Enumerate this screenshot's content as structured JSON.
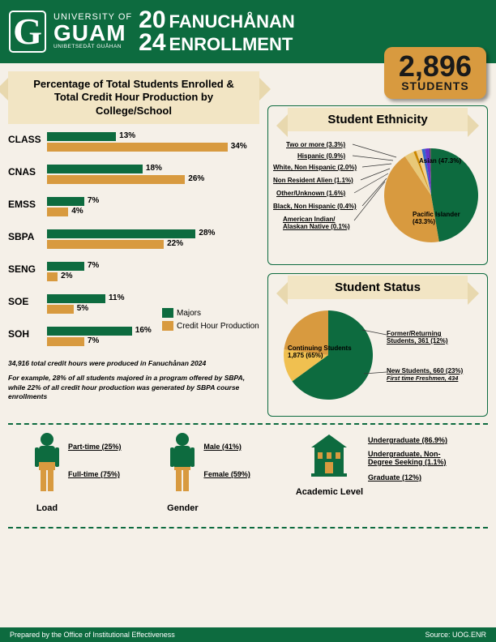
{
  "header": {
    "univ_top": "UNIVERSITY OF",
    "univ_main": "GUAM",
    "univ_sub": "UNIBETSEDÅT GUÅHAN",
    "year1": "20",
    "year2": "24",
    "sem1": "FANUCHÅNAN",
    "sem2": "ENROLLMENT"
  },
  "count": {
    "num": "2,896",
    "label": "STUDENTS"
  },
  "college_banner": "Percentage of Total Students Enrolled & Total Credit Hour Production by College/School",
  "colors": {
    "green": "#0d6b3f",
    "orange": "#d89a3f",
    "banner": "#f2e5c4"
  },
  "bars": {
    "max": 40,
    "rows": [
      {
        "label": "CLASS",
        "majors": 13,
        "credits": 34
      },
      {
        "label": "CNAS",
        "majors": 18,
        "credits": 26
      },
      {
        "label": "EMSS",
        "majors": 7,
        "credits": 4
      },
      {
        "label": "SBPA",
        "majors": 28,
        "credits": 22
      },
      {
        "label": "SENG",
        "majors": 7,
        "credits": 2
      },
      {
        "label": "SOE",
        "majors": 11,
        "credits": 5
      },
      {
        "label": "SOH",
        "majors": 16,
        "credits": 7
      }
    ],
    "legend": {
      "majors": "Majors",
      "credits": "Credit Hour Production"
    }
  },
  "footnote1": "34,916 total credit hours were produced in Fanuchånan 2024",
  "footnote2": "For example, 28% of all students majored in a program offered by SBPA, while 22% of all credit hour production was generated by SBPA course enrollments",
  "ethnicity": {
    "title": "Student Ethnicity",
    "slices": [
      {
        "label": "Asian (47.3%)",
        "value": 47.3,
        "color": "#0d6b3f"
      },
      {
        "label": "Pacific Islander (43.3%)",
        "value": 43.3,
        "color": "#d89a3f"
      },
      {
        "label": "Two or more (3.3%)",
        "value": 3.3,
        "color": "#e8c878"
      },
      {
        "label": "Hispanic (0.9%)",
        "value": 0.9,
        "color": "#cc8800"
      },
      {
        "label": "White, Non Hispanic (2.0%)",
        "value": 2.0,
        "color": "#f0d090"
      },
      {
        "label": "Non Resident Alien (1.1%)",
        "value": 1.1,
        "color": "#3366cc"
      },
      {
        "label": "Other/Unknown (1.6%)",
        "value": 1.6,
        "color": "#6633cc"
      },
      {
        "label": "Black, Non Hispanic (0.4%)",
        "value": 0.4,
        "color": "#333333"
      },
      {
        "label": "American Indian/ Alaskan Native (0.1%)",
        "value": 0.1,
        "color": "#888888"
      }
    ]
  },
  "status": {
    "title": "Student Status",
    "slices": [
      {
        "label": "Continuing Students 1,875 (65%)",
        "value": 65,
        "color": "#0d6b3f"
      },
      {
        "label": "Former/Returning Students, 361 (12%)",
        "value": 12,
        "color": "#f0c050"
      },
      {
        "label": "New Students, 660 (23%)",
        "sublabel": "First time Freshmen, 434",
        "value": 23,
        "color": "#d89a3f"
      }
    ]
  },
  "load": {
    "title": "Load",
    "items": [
      {
        "label": "Part-time (25%)",
        "value": 25
      },
      {
        "label": "Full-time (75%)",
        "value": 75
      }
    ]
  },
  "gender": {
    "title": "Gender",
    "items": [
      {
        "label": "Male (41%)",
        "value": 41
      },
      {
        "label": "Female (59%)",
        "value": 59
      }
    ]
  },
  "level": {
    "title": "Academic Level",
    "items": [
      {
        "label": "Undergraduate (86.9%)"
      },
      {
        "label": "Undergraduate, Non-Degree Seeking (1.1%)",
        "small": true
      },
      {
        "label": "Graduate (12%)"
      }
    ]
  },
  "footer": {
    "left": "Prepared by the Office of Institutional Effectiveness",
    "right": "Source: UOG.ENR"
  }
}
